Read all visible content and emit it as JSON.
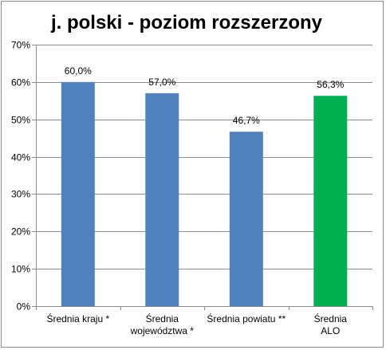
{
  "chart_data": {
    "type": "bar",
    "title": "j. polski - poziom rozszerzony",
    "xlabel": "",
    "ylabel": "",
    "ylim": [
      0,
      70
    ],
    "y_ticks": [
      "0%",
      "10%",
      "20%",
      "30%",
      "40%",
      "50%",
      "60%",
      "70%"
    ],
    "y_tick_values": [
      0,
      10,
      20,
      30,
      40,
      50,
      60,
      70
    ],
    "grid": true,
    "legend": "none",
    "categories": [
      [
        "Średnia kraju *"
      ],
      [
        "Średnia",
        "województwa *"
      ],
      [
        "Średnia powiatu **"
      ],
      [
        "Średnia",
        "ALO"
      ]
    ],
    "values": [
      60.0,
      57.0,
      46.7,
      56.3
    ],
    "data_labels": [
      "60,0%",
      "57,0%",
      "46,7%",
      "56,3%"
    ],
    "colors": [
      "#4f81bd",
      "#4f81bd",
      "#4f81bd",
      "#00b050"
    ],
    "gridline_color": "#8c8c8c",
    "axis_color": "#8c8c8c"
  }
}
